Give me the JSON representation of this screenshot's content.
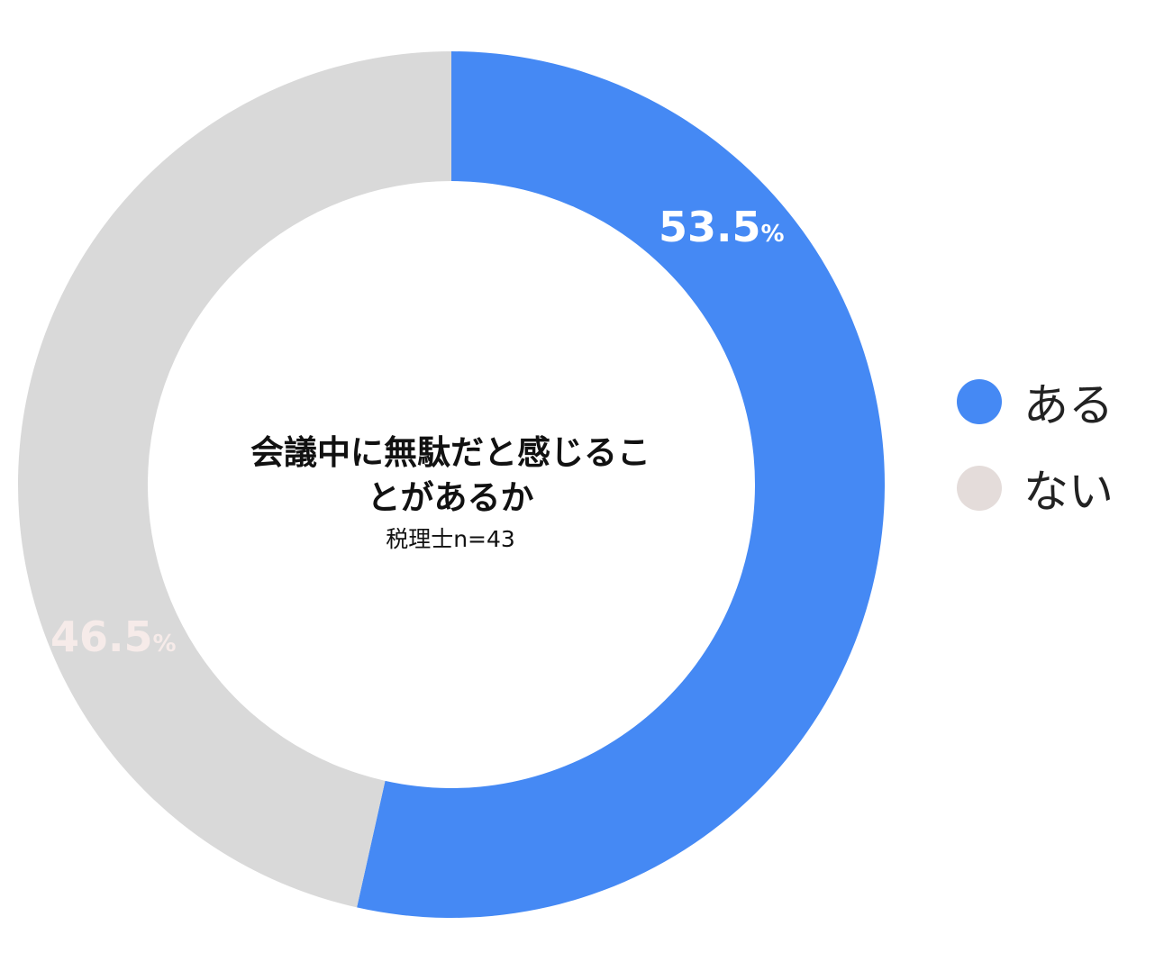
{
  "chart_data": {
    "type": "pie",
    "donut": true,
    "title": "会議中に無駄だと感じることがあるか",
    "title_lines": [
      "会議中に無駄だと感じるこ",
      "とがあるか"
    ],
    "subtitle": "税理士n=43",
    "categories": [
      "ある",
      "ない"
    ],
    "values": [
      53.5,
      46.5
    ],
    "value_labels": [
      "53.5",
      "46.5"
    ],
    "unit": "%",
    "colors": [
      "#4589f4",
      "#d9d9d9"
    ],
    "legend_colors": [
      "#4589f4",
      "#e4dcda"
    ],
    "label_colors": [
      "#ffffff",
      "#f6ebe9"
    ],
    "legend_position": "right",
    "start_angle_deg": 0,
    "direction": "clockwise"
  }
}
